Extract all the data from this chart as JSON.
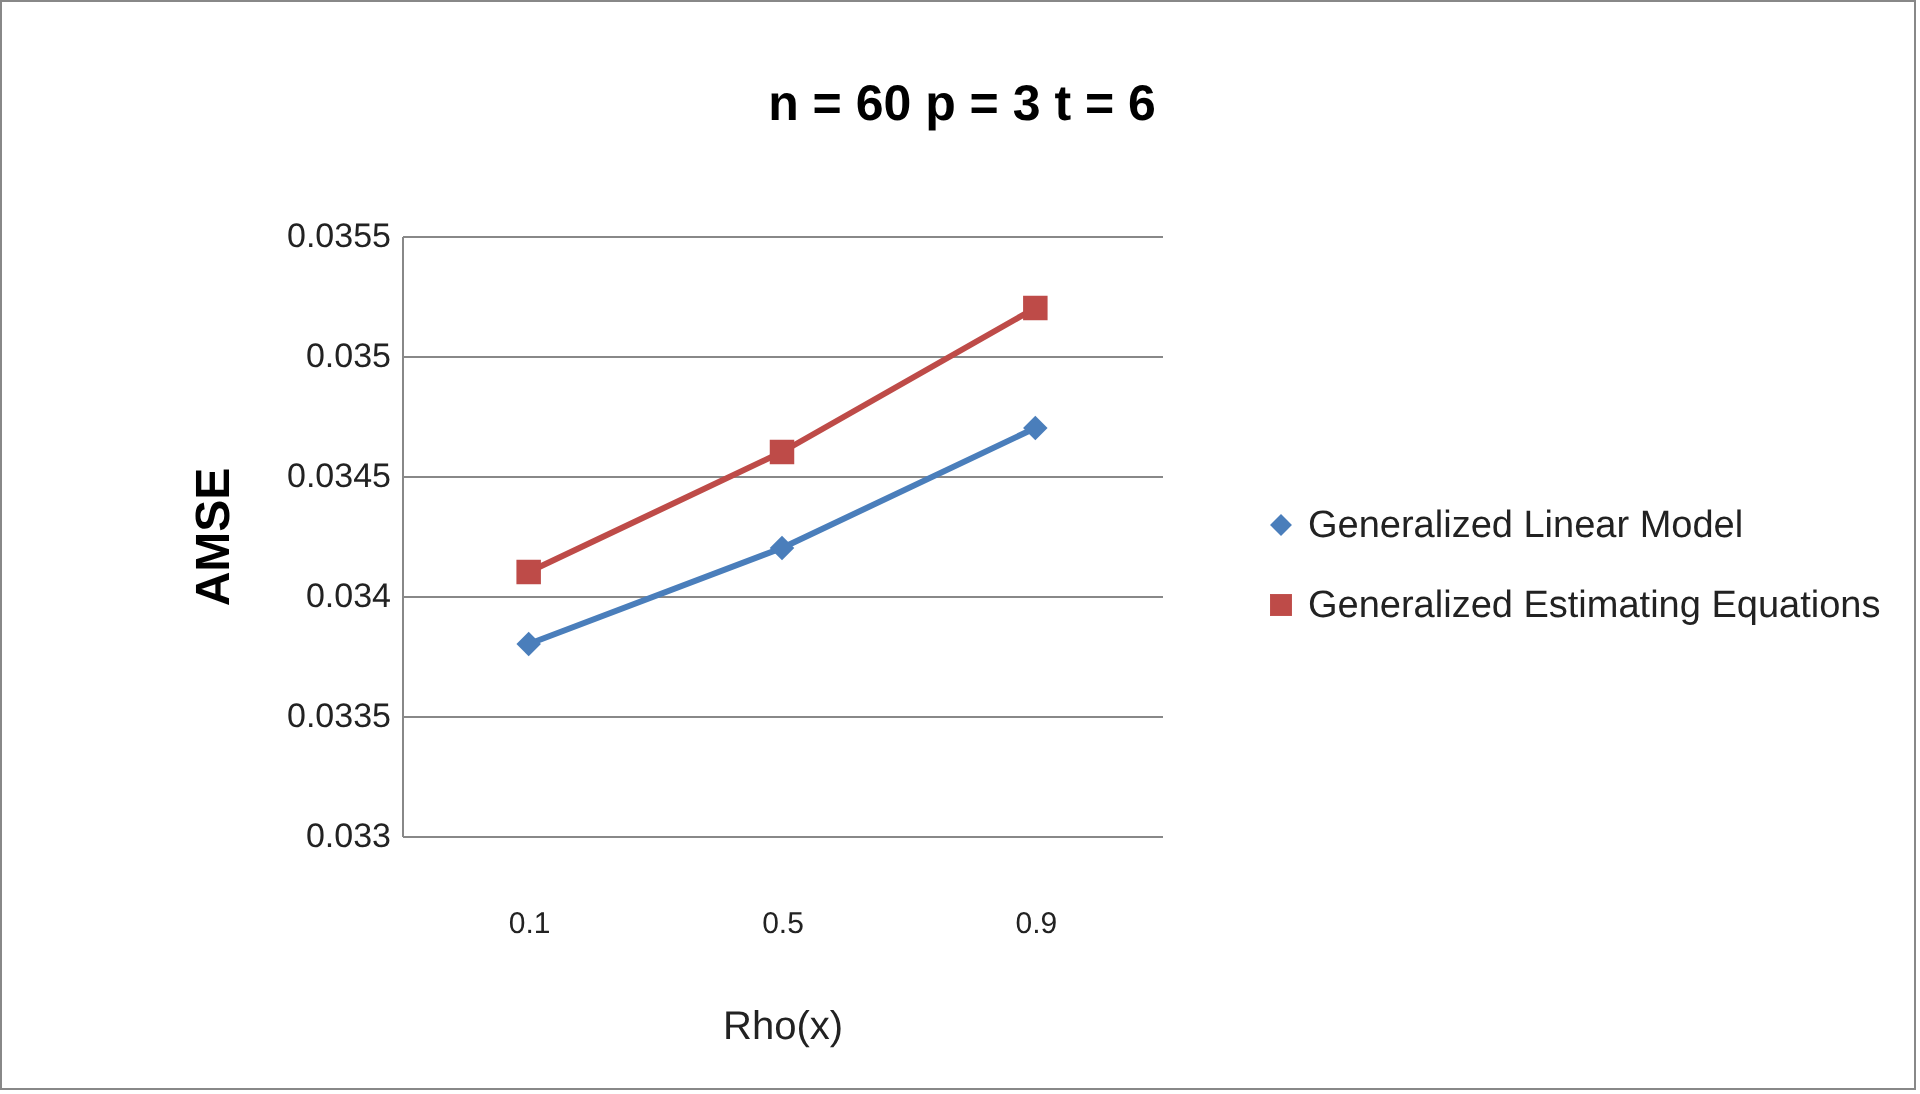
{
  "chart_data": {
    "type": "line",
    "title": "n = 60  p = 3   t = 6",
    "xlabel": "Rho(x)",
    "ylabel": "AMSE",
    "categories": [
      "0.1",
      "0.5",
      "0.9"
    ],
    "series": [
      {
        "name": "Generalized Linear Model",
        "color": "#4a7ebb",
        "marker": "diamond",
        "values": [
          0.0338,
          0.0342,
          0.0347
        ]
      },
      {
        "name": "Generalized Estimating Equations",
        "color": "#be4b48",
        "marker": "square",
        "values": [
          0.0341,
          0.0346,
          0.0352
        ]
      }
    ],
    "ylim": [
      0.033,
      0.0355
    ],
    "yticks": [
      0.033,
      0.0335,
      0.034,
      0.0345,
      0.035,
      0.0355
    ],
    "grid": "y",
    "legend": "right",
    "line_style": "solid"
  }
}
